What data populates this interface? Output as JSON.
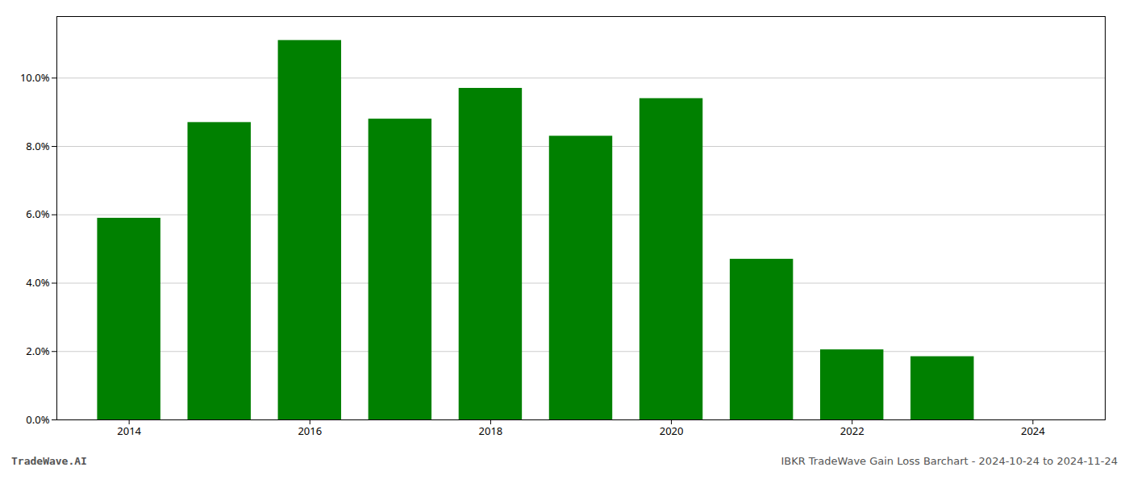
{
  "chart_data": {
    "type": "bar",
    "x": [
      2014,
      2015,
      2016,
      2017,
      2018,
      2019,
      2020,
      2021,
      2022,
      2023
    ],
    "values": [
      0.059,
      0.087,
      0.111,
      0.088,
      0.097,
      0.083,
      0.094,
      0.047,
      0.0205,
      0.0185
    ],
    "color": "#008000",
    "xlim": [
      2013.2,
      2024.8
    ],
    "xticks": [
      2014,
      2016,
      2018,
      2020,
      2022,
      2024
    ],
    "ylim": [
      0,
      0.118
    ],
    "yticks": [
      {
        "value": 0.0,
        "label": "0.0%"
      },
      {
        "value": 0.02,
        "label": "2.0%"
      },
      {
        "value": 0.04,
        "label": "4.0%"
      },
      {
        "value": 0.06,
        "label": "6.0%"
      },
      {
        "value": 0.08,
        "label": "8.0%"
      },
      {
        "value": 0.1,
        "label": "10.0%"
      }
    ],
    "grid": true,
    "annotations": [
      "TradeWave.AI",
      "IBKR TradeWave Gain Loss Barchart - 2024-10-24 to 2024-11-24"
    ]
  }
}
